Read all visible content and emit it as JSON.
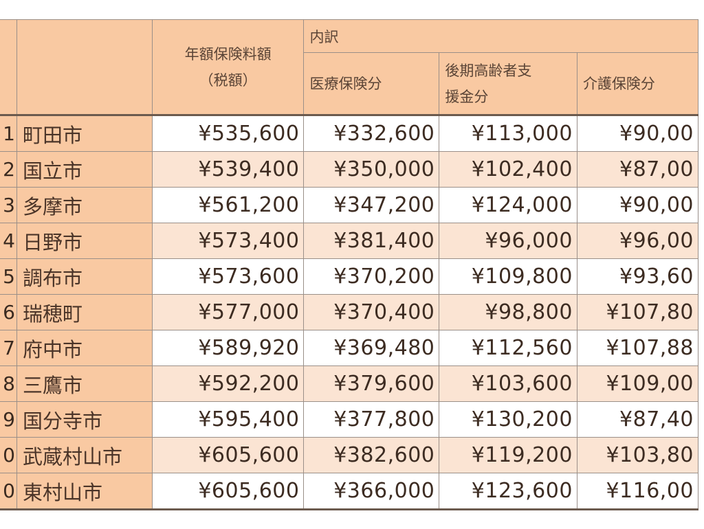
{
  "table": {
    "headers": {
      "total_line1": "年額保険料額",
      "total_line2": "（税額）",
      "breakdown": "内訳",
      "medical": "医療保険分",
      "elderly_line1": "後期高齢者支",
      "elderly_line2": "援金分",
      "care": "介護保険分"
    },
    "rows": [
      {
        "rank": "1",
        "city": "町田市",
        "total": "¥535,600",
        "medical": "¥332,600",
        "elderly": "¥113,000",
        "care": "¥90,00"
      },
      {
        "rank": "2",
        "city": "国立市",
        "total": "¥539,400",
        "medical": "¥350,000",
        "elderly": "¥102,400",
        "care": "¥87,00"
      },
      {
        "rank": "3",
        "city": "多摩市",
        "total": "¥561,200",
        "medical": "¥347,200",
        "elderly": "¥124,000",
        "care": "¥90,00"
      },
      {
        "rank": "4",
        "city": "日野市",
        "total": "¥573,400",
        "medical": "¥381,400",
        "elderly": "¥96,000",
        "care": "¥96,00"
      },
      {
        "rank": "5",
        "city": "調布市",
        "total": "¥573,600",
        "medical": "¥370,200",
        "elderly": "¥109,800",
        "care": "¥93,60"
      },
      {
        "rank": "6",
        "city": "瑞穂町",
        "total": "¥577,000",
        "medical": "¥370,400",
        "elderly": "¥98,800",
        "care": "¥107,80"
      },
      {
        "rank": "7",
        "city": "府中市",
        "total": "¥589,920",
        "medical": "¥369,480",
        "elderly": "¥112,560",
        "care": "¥107,88"
      },
      {
        "rank": "8",
        "city": "三鷹市",
        "total": "¥592,200",
        "medical": "¥379,600",
        "elderly": "¥103,600",
        "care": "¥109,00"
      },
      {
        "rank": "9",
        "city": "国分寺市",
        "total": "¥595,400",
        "medical": "¥377,800",
        "elderly": "¥130,200",
        "care": "¥87,40"
      },
      {
        "rank": "0",
        "city": "武蔵村山市",
        "total": "¥605,600",
        "medical": "¥382,600",
        "elderly": "¥119,200",
        "care": "¥103,80"
      },
      {
        "rank": "0",
        "city": "東村山市",
        "total": "¥605,600",
        "medical": "¥366,000",
        "elderly": "¥123,600",
        "care": "¥116,00"
      }
    ]
  }
}
